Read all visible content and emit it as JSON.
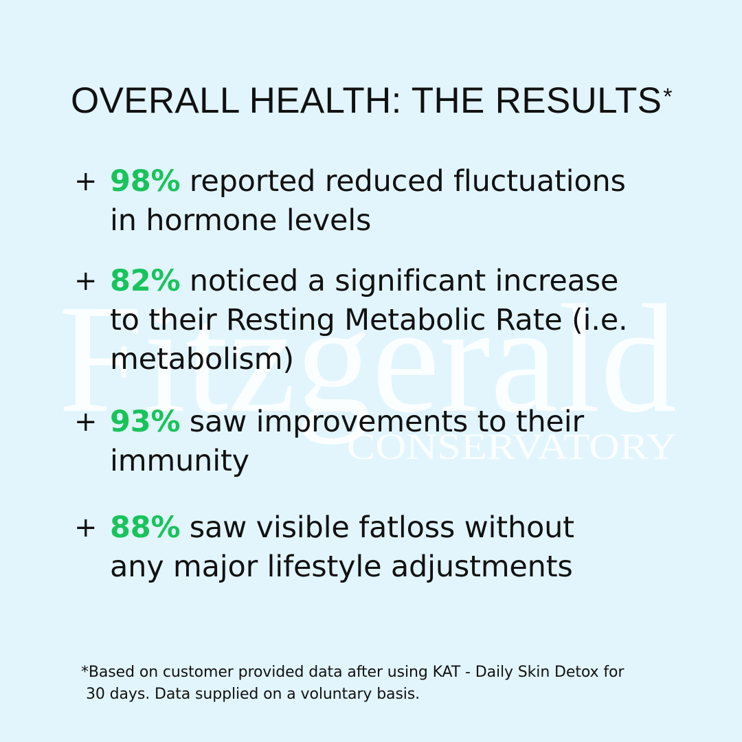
{
  "title": {
    "text": "OVERALL HEALTH: THE RESULTS",
    "marker": "*"
  },
  "watermark": {
    "name": "Fitzgerald",
    "subtitle": "CONSERVATORY",
    "color": "#ffffff"
  },
  "colors": {
    "background": "#e2f5fd",
    "accent": "#19c35c",
    "text": "#111111"
  },
  "results": [
    {
      "bullet": "+",
      "percent": "98%",
      "line1": " reported reduced fluctuations",
      "line2": "in hormone levels",
      "line3": ""
    },
    {
      "bullet": "+",
      "percent": "82%",
      "line1": " noticed a significant increase",
      "line2": "to their Resting Metabolic Rate (i.e.",
      "line3": "metabolism)"
    },
    {
      "bullet": "+",
      "percent": "93%",
      "line1": " saw improvements to their",
      "line2": "immunity",
      "line3": ""
    },
    {
      "bullet": "+",
      "percent": "88%",
      "line1": " saw visible fatloss without",
      "line2": "any major lifestyle adjustments",
      "line3": ""
    }
  ],
  "footnote": {
    "line1": "*Based on customer provided data after using KAT - Daily Skin Detox for",
    "line2": "30 days. Data supplied on a voluntary basis."
  }
}
